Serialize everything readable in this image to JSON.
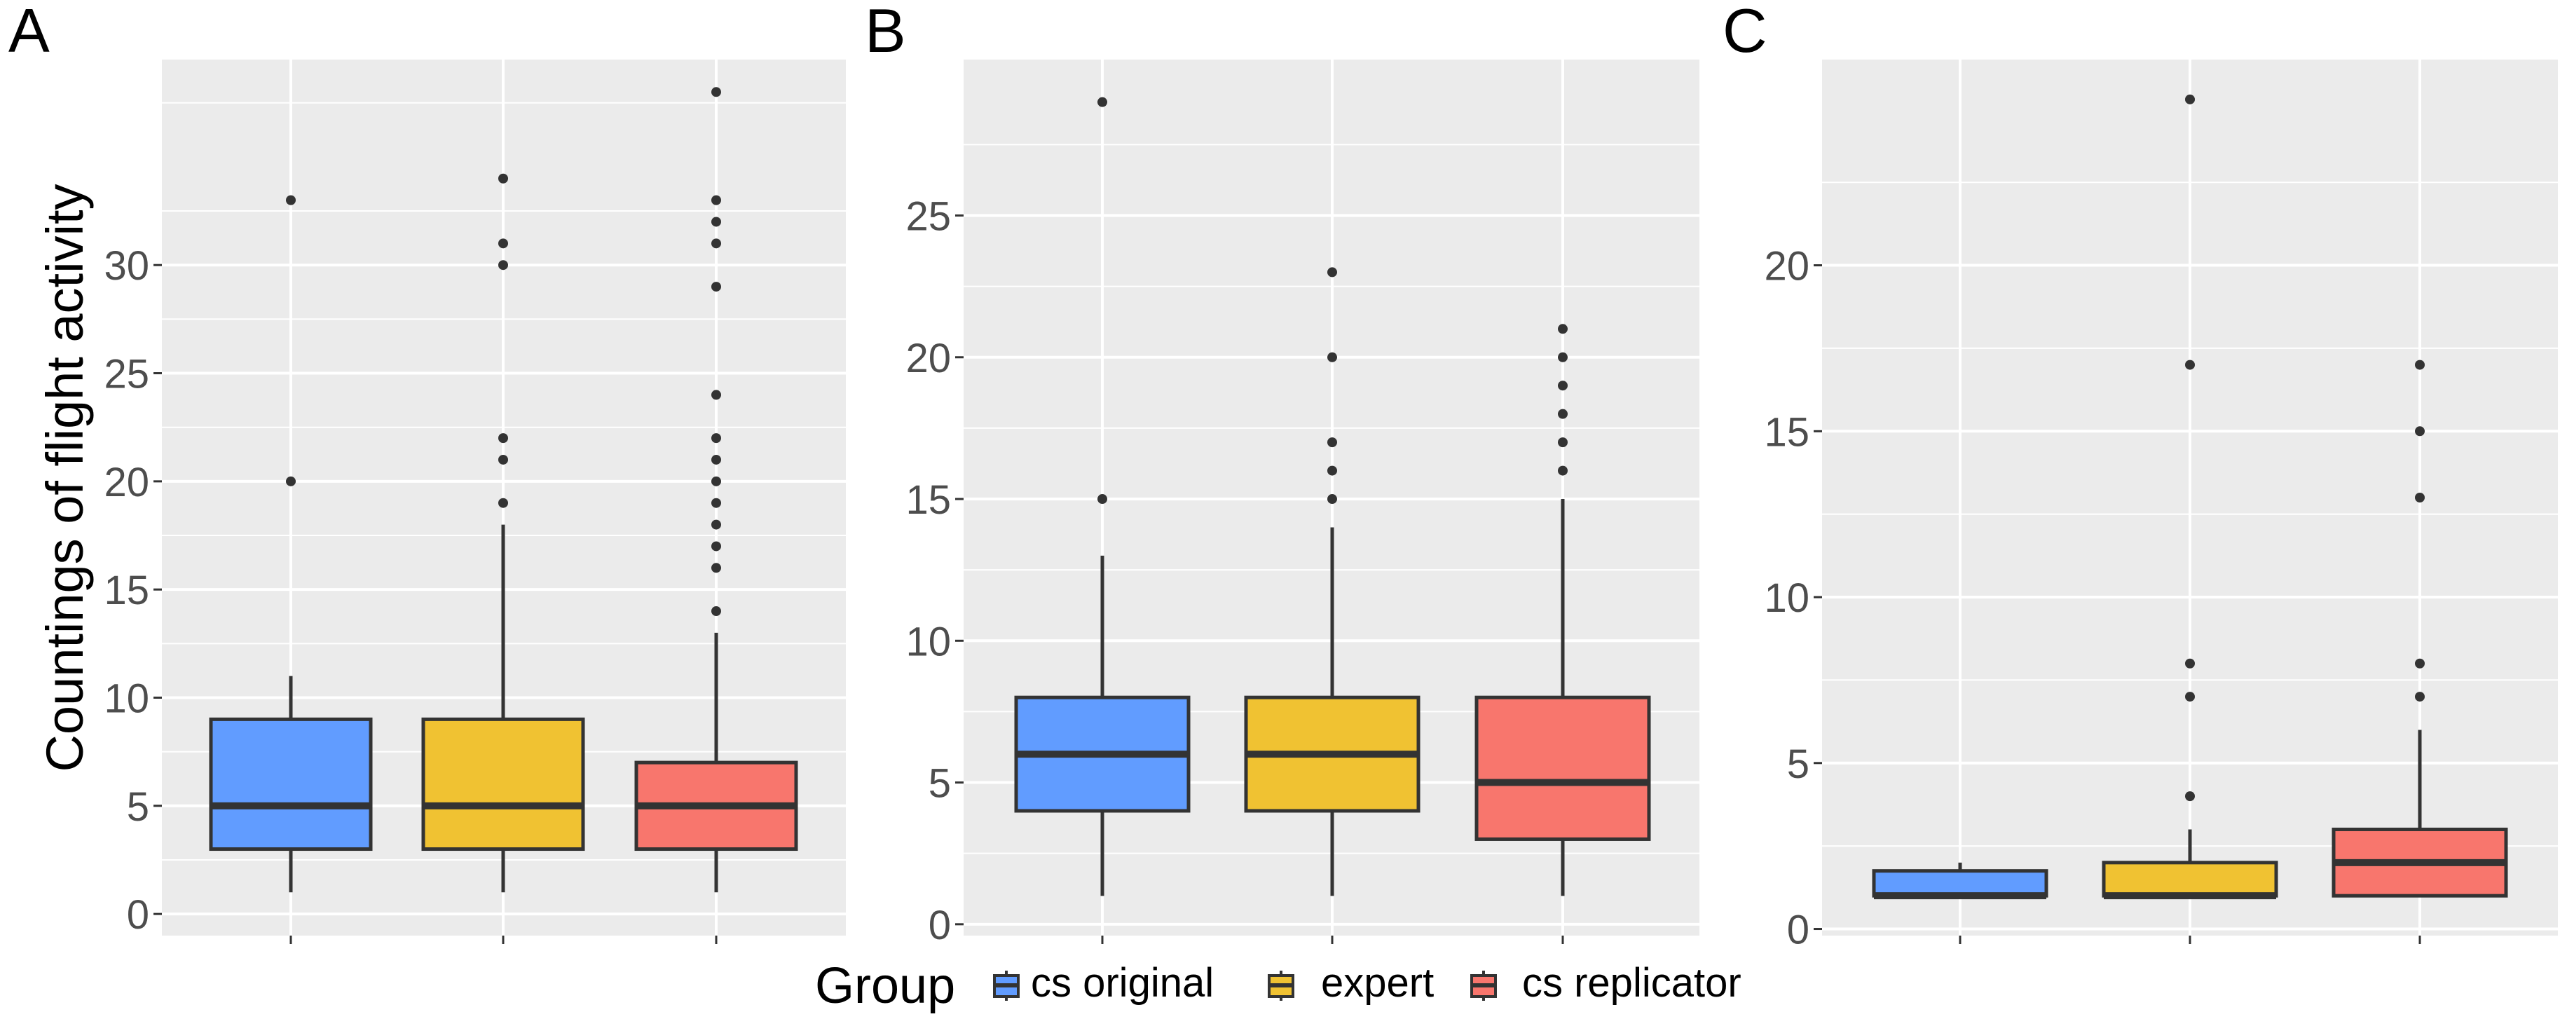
{
  "chart_data": [
    {
      "type": "box",
      "panel_label": "A",
      "ylabel": "Countings of flight activity",
      "ylim": [
        -1,
        39.5
      ],
      "yticks": [
        0,
        5,
        10,
        15,
        20,
        25,
        30
      ],
      "categories": [
        "cs original",
        "expert",
        "cs replicator"
      ],
      "boxes": [
        {
          "group": "cs original",
          "whisker_low": 1,
          "q1": 3,
          "median": 5,
          "q3": 9,
          "whisker_high": 11,
          "outliers": [
            20,
            33
          ]
        },
        {
          "group": "expert",
          "whisker_low": 1,
          "q1": 3,
          "median": 5,
          "q3": 9,
          "whisker_high": 18,
          "outliers": [
            19,
            21,
            22,
            30,
            31,
            34
          ]
        },
        {
          "group": "cs replicator",
          "whisker_low": 1,
          "q1": 3,
          "median": 5,
          "q3": 7,
          "whisker_high": 13,
          "outliers": [
            14,
            16,
            17,
            18,
            19,
            20,
            21,
            22,
            24,
            29,
            31,
            32,
            33,
            38
          ]
        }
      ]
    },
    {
      "type": "box",
      "panel_label": "B",
      "ylabel": "",
      "ylim": [
        -0.4,
        30.5
      ],
      "yticks": [
        0,
        5,
        10,
        15,
        20,
        25
      ],
      "categories": [
        "cs original",
        "expert",
        "cs replicator"
      ],
      "boxes": [
        {
          "group": "cs original",
          "whisker_low": 1,
          "q1": 4,
          "median": 6,
          "q3": 8,
          "whisker_high": 13,
          "outliers": [
            15,
            29
          ]
        },
        {
          "group": "expert",
          "whisker_low": 1,
          "q1": 4,
          "median": 6,
          "q3": 8,
          "whisker_high": 14,
          "outliers": [
            15,
            16,
            17,
            20,
            23
          ]
        },
        {
          "group": "cs replicator",
          "whisker_low": 1,
          "q1": 3,
          "median": 5,
          "q3": 8,
          "whisker_high": 15,
          "outliers": [
            16,
            17,
            18,
            19,
            20,
            21
          ]
        }
      ]
    },
    {
      "type": "box",
      "panel_label": "C",
      "ylabel": "",
      "ylim": [
        -0.2,
        26.2
      ],
      "yticks": [
        0,
        5,
        10,
        15,
        20
      ],
      "categories": [
        "cs original",
        "expert",
        "cs replicator"
      ],
      "boxes": [
        {
          "group": "cs original",
          "whisker_low": 1,
          "q1": 1,
          "median": 1,
          "q3": 1.75,
          "whisker_high": 2,
          "outliers": []
        },
        {
          "group": "expert",
          "whisker_low": 1,
          "q1": 1,
          "median": 1,
          "q3": 2,
          "whisker_high": 3,
          "outliers": [
            4,
            7,
            8,
            17,
            25
          ]
        },
        {
          "group": "cs replicator",
          "whisker_low": 1,
          "q1": 1,
          "median": 2,
          "q3": 3,
          "whisker_high": 6,
          "outliers": [
            7,
            8,
            13,
            15,
            17
          ]
        }
      ]
    }
  ],
  "legend": {
    "title": "Group",
    "items": [
      {
        "label": "cs original",
        "color": "#619CFF"
      },
      {
        "label": "expert",
        "color": "#F0C232"
      },
      {
        "label": "cs replicator",
        "color": "#F8766D"
      }
    ]
  },
  "colors": {
    "panel_background": "#EBEBEB",
    "grid": "#FFFFFF",
    "box_outline": "#333333",
    "tick_text": "#4D4D4D"
  }
}
